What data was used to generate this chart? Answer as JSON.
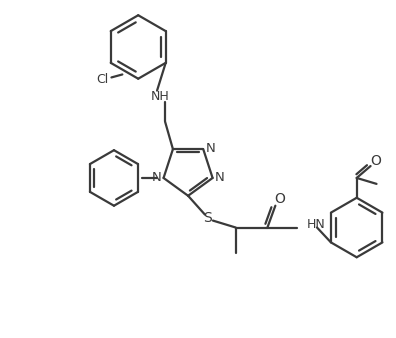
{
  "bg_color": "#ffffff",
  "line_color": "#3a3a3a",
  "text_color": "#3a3a3a",
  "bond_lw": 1.6,
  "figsize": [
    3.96,
    3.38
  ],
  "dpi": 100,
  "xlim": [
    0,
    396
  ],
  "ylim": [
    0,
    338
  ]
}
